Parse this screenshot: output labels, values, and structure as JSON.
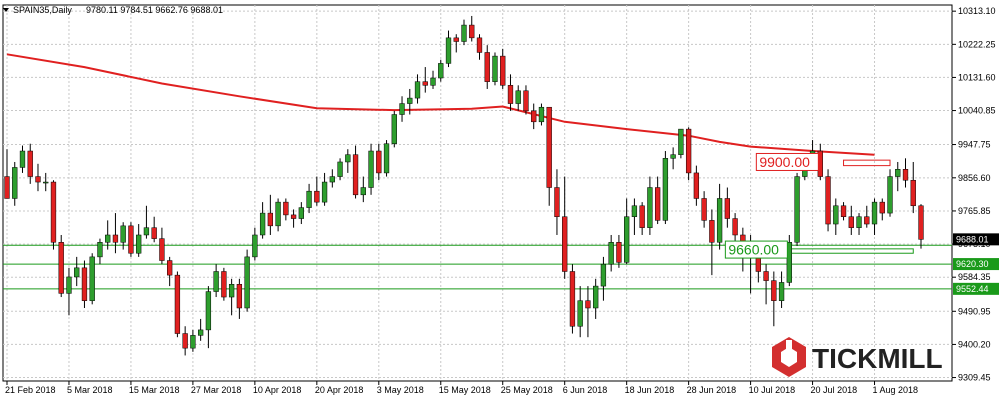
{
  "header": {
    "symbol_label": "SPAIN35,Daily",
    "ohlc_text": "9780.11 9784.51 9662.76 9688.01"
  },
  "brand": {
    "name": "TICKMILL",
    "color": "#d32f2f"
  },
  "colors": {
    "bull": "#2e9e2e",
    "bear": "#e02020",
    "ma": "#e02020",
    "support": "#1a9a1a",
    "grid": "#c8c8c8"
  },
  "chart_data": {
    "type": "candlestick",
    "instrument": "SPAIN35",
    "timeframe": "Daily",
    "last": {
      "open": 9780.11,
      "high": 9784.51,
      "low": 9662.76,
      "close": 9688.01
    },
    "ylim": [
      9300,
      10330
    ],
    "y_ticks": [
      "10313.10",
      "10222.25",
      "10131.60",
      "10040.85",
      "9947.75",
      "9856.60",
      "9765.85",
      "9675.10",
      "9584.35",
      "9490.95",
      "9400.20",
      "9309.45"
    ],
    "x_tick_labels": [
      "21 Feb 2018",
      "5 Mar 2018",
      "15 Mar 2018",
      "27 Mar 2018",
      "10 Apr 2018",
      "20 Apr 2018",
      "3 May 2018",
      "15 May 2018",
      "25 May 2018",
      "6 Jun 2018",
      "18 Jun 2018",
      "28 Jun 2018",
      "10 Jul 2018",
      "20 Jul 2018",
      "1 Aug 2018"
    ],
    "x_tick_index": [
      0,
      8,
      16,
      24,
      32,
      40,
      48,
      56,
      64,
      72,
      80,
      88,
      96,
      104,
      112
    ],
    "price_tags": [
      {
        "text": "9688.01",
        "value": 9688.01,
        "style": "current"
      },
      {
        "text": "9620.30",
        "value": 9620.3,
        "style": "level"
      },
      {
        "text": "9552.44",
        "value": 9552.44,
        "style": "level"
      }
    ],
    "level_lines": [
      9672,
      9620.3,
      9552.44
    ],
    "annotations": [
      {
        "text": "9900.00",
        "value": 9900.0,
        "kind": "resistance",
        "at_index": 97
      },
      {
        "text": "9660.00",
        "value": 9660.0,
        "kind": "support",
        "at_index": 93
      }
    ],
    "zones": [
      {
        "kind": "resistance",
        "low": 9890,
        "high": 9905,
        "from_index": 108,
        "to_index": 114
      },
      {
        "kind": "support",
        "low": 9650,
        "high": 9662,
        "from_index": 101,
        "to_index": 117
      }
    ],
    "ma_series": {
      "name": "Moving average",
      "points": [
        [
          0,
          10195
        ],
        [
          10,
          10160
        ],
        [
          20,
          10115
        ],
        [
          30,
          10080
        ],
        [
          40,
          10047
        ],
        [
          50,
          10042
        ],
        [
          60,
          10046
        ],
        [
          64,
          10052
        ],
        [
          72,
          10010
        ],
        [
          80,
          9990
        ],
        [
          88,
          9972
        ],
        [
          92,
          9955
        ],
        [
          96,
          9942
        ],
        [
          104,
          9930
        ],
        [
          112,
          9920
        ]
      ]
    },
    "candles": [
      {
        "o": 9860,
        "h": 9935,
        "l": 9800,
        "c": 9800
      },
      {
        "o": 9800,
        "h": 9900,
        "l": 9780,
        "c": 9885
      },
      {
        "o": 9885,
        "h": 9945,
        "l": 9870,
        "c": 9930
      },
      {
        "o": 9930,
        "h": 9950,
        "l": 9840,
        "c": 9860
      },
      {
        "o": 9860,
        "h": 9895,
        "l": 9820,
        "c": 9845
      },
      {
        "o": 9845,
        "h": 9870,
        "l": 9820,
        "c": 9845
      },
      {
        "o": 9845,
        "h": 9850,
        "l": 9660,
        "c": 9680
      },
      {
        "o": 9680,
        "h": 9700,
        "l": 9530,
        "c": 9540
      },
      {
        "o": 9540,
        "h": 9610,
        "l": 9480,
        "c": 9585
      },
      {
        "o": 9585,
        "h": 9640,
        "l": 9560,
        "c": 9610
      },
      {
        "o": 9610,
        "h": 9630,
        "l": 9500,
        "c": 9520
      },
      {
        "o": 9520,
        "h": 9650,
        "l": 9510,
        "c": 9640
      },
      {
        "o": 9640,
        "h": 9690,
        "l": 9620,
        "c": 9680
      },
      {
        "o": 9680,
        "h": 9740,
        "l": 9660,
        "c": 9700
      },
      {
        "o": 9700,
        "h": 9760,
        "l": 9650,
        "c": 9680
      },
      {
        "o": 9680,
        "h": 9735,
        "l": 9660,
        "c": 9725
      },
      {
        "o": 9725,
        "h": 9735,
        "l": 9640,
        "c": 9650
      },
      {
        "o": 9650,
        "h": 9730,
        "l": 9640,
        "c": 9700
      },
      {
        "o": 9700,
        "h": 9780,
        "l": 9690,
        "c": 9720
      },
      {
        "o": 9720,
        "h": 9750,
        "l": 9680,
        "c": 9690
      },
      {
        "o": 9690,
        "h": 9720,
        "l": 9620,
        "c": 9630
      },
      {
        "o": 9630,
        "h": 9640,
        "l": 9560,
        "c": 9590
      },
      {
        "o": 9590,
        "h": 9600,
        "l": 9420,
        "c": 9430
      },
      {
        "o": 9430,
        "h": 9450,
        "l": 9370,
        "c": 9390
      },
      {
        "o": 9390,
        "h": 9440,
        "l": 9380,
        "c": 9425
      },
      {
        "o": 9425,
        "h": 9470,
        "l": 9410,
        "c": 9440
      },
      {
        "o": 9440,
        "h": 9560,
        "l": 9390,
        "c": 9545
      },
      {
        "o": 9545,
        "h": 9620,
        "l": 9530,
        "c": 9600
      },
      {
        "o": 9600,
        "h": 9610,
        "l": 9520,
        "c": 9530
      },
      {
        "o": 9530,
        "h": 9580,
        "l": 9480,
        "c": 9565
      },
      {
        "o": 9565,
        "h": 9580,
        "l": 9470,
        "c": 9500
      },
      {
        "o": 9500,
        "h": 9660,
        "l": 9490,
        "c": 9640
      },
      {
        "o": 9640,
        "h": 9720,
        "l": 9630,
        "c": 9700
      },
      {
        "o": 9700,
        "h": 9790,
        "l": 9690,
        "c": 9760
      },
      {
        "o": 9760,
        "h": 9810,
        "l": 9700,
        "c": 9725
      },
      {
        "o": 9725,
        "h": 9800,
        "l": 9710,
        "c": 9790
      },
      {
        "o": 9790,
        "h": 9800,
        "l": 9740,
        "c": 9755
      },
      {
        "o": 9755,
        "h": 9770,
        "l": 9720,
        "c": 9745
      },
      {
        "o": 9745,
        "h": 9790,
        "l": 9730,
        "c": 9775
      },
      {
        "o": 9775,
        "h": 9840,
        "l": 9760,
        "c": 9820
      },
      {
        "o": 9820,
        "h": 9860,
        "l": 9780,
        "c": 9790
      },
      {
        "o": 9790,
        "h": 9870,
        "l": 9780,
        "c": 9845
      },
      {
        "o": 9845,
        "h": 9880,
        "l": 9830,
        "c": 9860
      },
      {
        "o": 9860,
        "h": 9910,
        "l": 9850,
        "c": 9900
      },
      {
        "o": 9900,
        "h": 9935,
        "l": 9870,
        "c": 9920
      },
      {
        "o": 9920,
        "h": 9945,
        "l": 9800,
        "c": 9810
      },
      {
        "o": 9810,
        "h": 9860,
        "l": 9790,
        "c": 9830
      },
      {
        "o": 9830,
        "h": 9950,
        "l": 9810,
        "c": 9930
      },
      {
        "o": 9930,
        "h": 9950,
        "l": 9850,
        "c": 9870
      },
      {
        "o": 9870,
        "h": 9960,
        "l": 9860,
        "c": 9950
      },
      {
        "o": 9950,
        "h": 10040,
        "l": 9940,
        "c": 10030
      },
      {
        "o": 10030,
        "h": 10080,
        "l": 10010,
        "c": 10060
      },
      {
        "o": 10060,
        "h": 10100,
        "l": 10030,
        "c": 10075
      },
      {
        "o": 10075,
        "h": 10140,
        "l": 10060,
        "c": 10120
      },
      {
        "o": 10120,
        "h": 10160,
        "l": 10090,
        "c": 10110
      },
      {
        "o": 10110,
        "h": 10150,
        "l": 10100,
        "c": 10130
      },
      {
        "o": 10130,
        "h": 10180,
        "l": 10120,
        "c": 10170
      },
      {
        "o": 10170,
        "h": 10260,
        "l": 10160,
        "c": 10240
      },
      {
        "o": 10240,
        "h": 10250,
        "l": 10200,
        "c": 10230
      },
      {
        "o": 10230,
        "h": 10290,
        "l": 10220,
        "c": 10275
      },
      {
        "o": 10275,
        "h": 10300,
        "l": 10230,
        "c": 10240
      },
      {
        "o": 10240,
        "h": 10250,
        "l": 10180,
        "c": 10200
      },
      {
        "o": 10200,
        "h": 10220,
        "l": 10100,
        "c": 10120
      },
      {
        "o": 10120,
        "h": 10200,
        "l": 10110,
        "c": 10190
      },
      {
        "o": 10190,
        "h": 10210,
        "l": 10100,
        "c": 10110
      },
      {
        "o": 10110,
        "h": 10140,
        "l": 10040,
        "c": 10060
      },
      {
        "o": 10060,
        "h": 10110,
        "l": 10040,
        "c": 10095
      },
      {
        "o": 10095,
        "h": 10110,
        "l": 10030,
        "c": 10040
      },
      {
        "o": 10040,
        "h": 10060,
        "l": 9990,
        "c": 10010
      },
      {
        "o": 10010,
        "h": 10060,
        "l": 10000,
        "c": 10050
      },
      {
        "o": 10050,
        "h": 10050,
        "l": 9780,
        "c": 9830
      },
      {
        "o": 9830,
        "h": 9880,
        "l": 9700,
        "c": 9750
      },
      {
        "o": 9750,
        "h": 9860,
        "l": 9580,
        "c": 9600
      },
      {
        "o": 9600,
        "h": 9620,
        "l": 9430,
        "c": 9450
      },
      {
        "o": 9450,
        "h": 9560,
        "l": 9420,
        "c": 9520
      },
      {
        "o": 9520,
        "h": 9560,
        "l": 9420,
        "c": 9500
      },
      {
        "o": 9500,
        "h": 9580,
        "l": 9470,
        "c": 9560
      },
      {
        "o": 9560,
        "h": 9640,
        "l": 9520,
        "c": 9620
      },
      {
        "o": 9620,
        "h": 9700,
        "l": 9600,
        "c": 9680
      },
      {
        "o": 9680,
        "h": 9700,
        "l": 9610,
        "c": 9625
      },
      {
        "o": 9625,
        "h": 9800,
        "l": 9620,
        "c": 9750
      },
      {
        "o": 9750,
        "h": 9800,
        "l": 9700,
        "c": 9780
      },
      {
        "o": 9780,
        "h": 9790,
        "l": 9700,
        "c": 9720
      },
      {
        "o": 9720,
        "h": 9860,
        "l": 9700,
        "c": 9830
      },
      {
        "o": 9830,
        "h": 9860,
        "l": 9730,
        "c": 9740
      },
      {
        "o": 9740,
        "h": 9930,
        "l": 9730,
        "c": 9910
      },
      {
        "o": 9910,
        "h": 9940,
        "l": 9880,
        "c": 9920
      },
      {
        "o": 9920,
        "h": 9990,
        "l": 9910,
        "c": 9990
      },
      {
        "o": 9990,
        "h": 9995,
        "l": 9850,
        "c": 9870
      },
      {
        "o": 9870,
        "h": 9890,
        "l": 9780,
        "c": 9800
      },
      {
        "o": 9800,
        "h": 9820,
        "l": 9720,
        "c": 9740
      },
      {
        "o": 9740,
        "h": 9770,
        "l": 9590,
        "c": 9680
      },
      {
        "o": 9680,
        "h": 9840,
        "l": 9660,
        "c": 9800
      },
      {
        "o": 9800,
        "h": 9830,
        "l": 9720,
        "c": 9745
      },
      {
        "o": 9745,
        "h": 9760,
        "l": 9650,
        "c": 9700
      },
      {
        "o": 9700,
        "h": 9720,
        "l": 9600,
        "c": 9640
      },
      {
        "o": 9640,
        "h": 9700,
        "l": 9540,
        "c": 9660
      },
      {
        "o": 9660,
        "h": 9680,
        "l": 9570,
        "c": 9600
      },
      {
        "o": 9600,
        "h": 9620,
        "l": 9510,
        "c": 9575
      },
      {
        "o": 9575,
        "h": 9600,
        "l": 9450,
        "c": 9520
      },
      {
        "o": 9520,
        "h": 9600,
        "l": 9500,
        "c": 9570
      },
      {
        "o": 9570,
        "h": 9700,
        "l": 9560,
        "c": 9680
      },
      {
        "o": 9680,
        "h": 9870,
        "l": 9670,
        "c": 9860
      },
      {
        "o": 9860,
        "h": 9920,
        "l": 9850,
        "c": 9905
      },
      {
        "o": 9905,
        "h": 9960,
        "l": 9900,
        "c": 9930
      },
      {
        "o": 9930,
        "h": 9950,
        "l": 9850,
        "c": 9860
      },
      {
        "o": 9860,
        "h": 9880,
        "l": 9710,
        "c": 9730
      },
      {
        "o": 9730,
        "h": 9800,
        "l": 9700,
        "c": 9780
      },
      {
        "o": 9780,
        "h": 9790,
        "l": 9740,
        "c": 9750
      },
      {
        "o": 9750,
        "h": 9780,
        "l": 9700,
        "c": 9720
      },
      {
        "o": 9720,
        "h": 9760,
        "l": 9700,
        "c": 9750
      },
      {
        "o": 9750,
        "h": 9780,
        "l": 9720,
        "c": 9730
      },
      {
        "o": 9730,
        "h": 9800,
        "l": 9700,
        "c": 9790
      },
      {
        "o": 9790,
        "h": 9800,
        "l": 9740,
        "c": 9760
      },
      {
        "o": 9760,
        "h": 9880,
        "l": 9750,
        "c": 9860
      },
      {
        "o": 9860,
        "h": 9900,
        "l": 9820,
        "c": 9880
      },
      {
        "o": 9880,
        "h": 9910,
        "l": 9830,
        "c": 9850
      },
      {
        "o": 9850,
        "h": 9900,
        "l": 9760,
        "c": 9780
      },
      {
        "o": 9780,
        "h": 9784.51,
        "l": 9662.76,
        "c": 9688.01
      }
    ]
  }
}
